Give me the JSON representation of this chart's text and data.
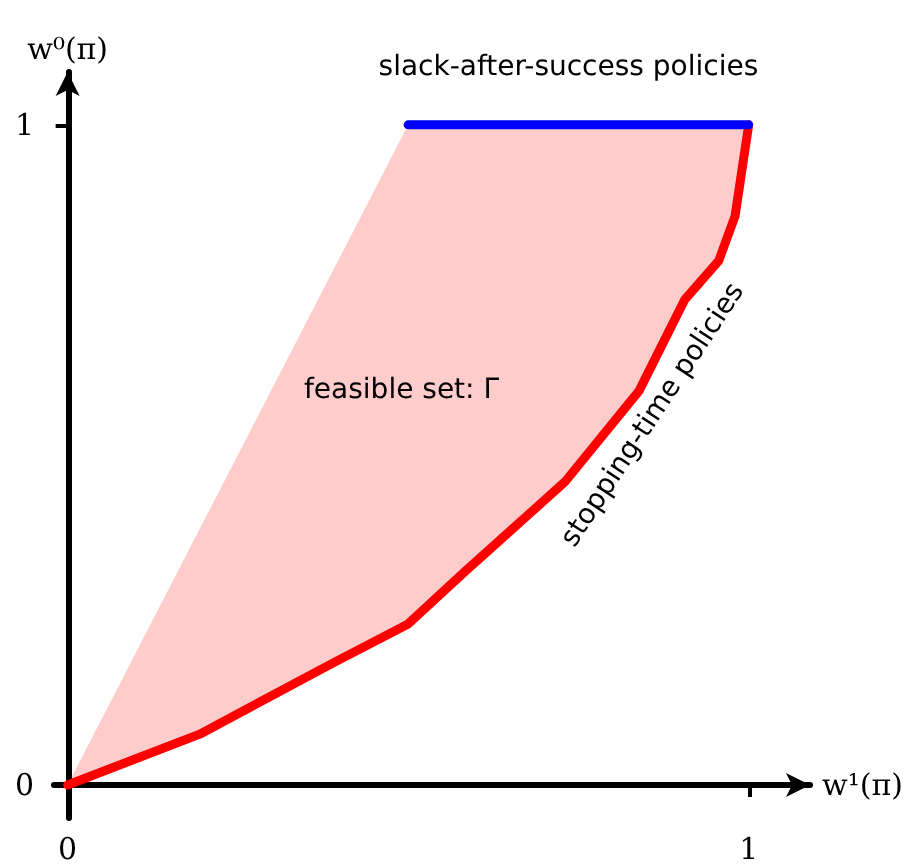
{
  "chart_data": {
    "type": "line",
    "xlabel": "w¹(π)",
    "ylabel": "w⁰(π)",
    "xlim": [
      -0.02,
      1.09
    ],
    "ylim": [
      -0.05,
      1.08
    ],
    "xticks": [
      0,
      1
    ],
    "yticks": [
      0,
      1
    ],
    "series": [
      {
        "name": "stopping-time policies",
        "color": "#ff0000",
        "x": [
          0,
          0.194,
          0.39,
          0.5,
          0.584,
          0.73,
          0.839,
          0.906,
          0.956,
          0.98,
          1
        ],
        "values": [
          0,
          0.077,
          0.185,
          0.244,
          0.324,
          0.459,
          0.597,
          0.735,
          0.794,
          0.862,
          1
        ],
        "lower": [
          0,
          0.077,
          0.185,
          0.244,
          0.324,
          0.459,
          0.597,
          0.735,
          0.794,
          0.862,
          1
        ],
        "upper": [
          0,
          0.388,
          0.78,
          1,
          1,
          1,
          1,
          1,
          1,
          1,
          1
        ]
      },
      {
        "name": "slack-after-success policies",
        "color": "#0000ff",
        "x": [
          0.5,
          1
        ],
        "values": [
          1,
          1
        ]
      }
    ],
    "annotations": [
      "feasible set: Γ"
    ],
    "legend": false,
    "grid": false,
    "marker": "none",
    "line_style": "solid"
  }
}
